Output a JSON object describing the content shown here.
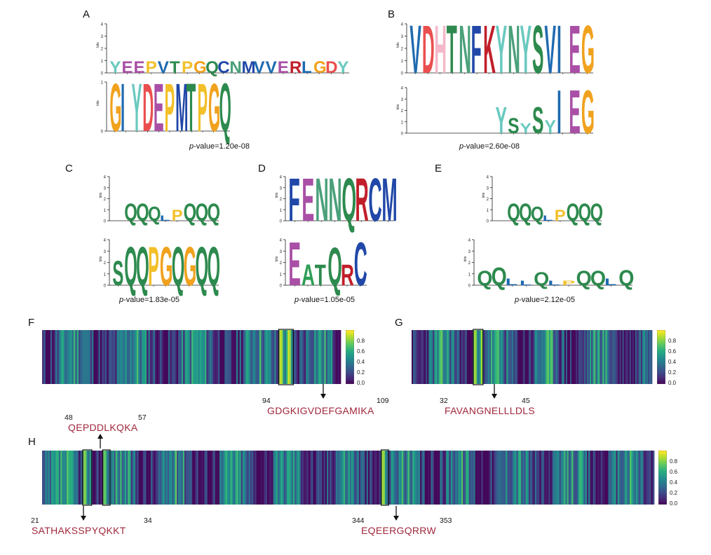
{
  "palette": {
    "A": "#2e9e57",
    "G": "#f0a21e",
    "C": "#2148a8",
    "D": "#ea4f4f",
    "E": "#a94fa6",
    "F": "#2148a8",
    "H": "#f4b8c8",
    "I": "#1e6ab0",
    "K": "#c11f2a",
    "L": "#1e6ab0",
    "M": "#2148a8",
    "N": "#4aa07a",
    "P": "#f3c02a",
    "Q": "#2d8a4e",
    "R": "#c11f2a",
    "S": "#2d8a4e",
    "T": "#2d8a4e",
    "V": "#1e6ab0",
    "W": "#2148a8",
    "Y": "#69c9bf"
  },
  "panels": {
    "A": {
      "letter": "A",
      "pvalue_label": "p",
      "pvalue_text": "-value=1.20e-08"
    },
    "B": {
      "letter": "B",
      "pvalue_label": "p",
      "pvalue_text": "-value=2.60e-08"
    },
    "C": {
      "letter": "C",
      "pvalue_label": "p",
      "pvalue_text": "-value=1.83e-05"
    },
    "D": {
      "letter": "D",
      "pvalue_label": "p",
      "pvalue_text": "-value=1.05e-05"
    },
    "E": {
      "letter": "E",
      "pvalue_label": "p",
      "pvalue_text": "-value=2.12e-05"
    },
    "F": {
      "letter": "F"
    },
    "G": {
      "letter": "G"
    },
    "H": {
      "letter": "H"
    }
  },
  "logos": {
    "A_top": {
      "ymax": 4,
      "columns": [
        "Y",
        "E",
        "E",
        "P",
        "V",
        "T",
        "P",
        "G",
        "Q",
        "C",
        "N",
        "M",
        "V",
        "V",
        "E",
        "R",
        "L",
        "G",
        "D",
        "Y"
      ],
      "heights": [
        1,
        1,
        1,
        1,
        1,
        1,
        1,
        1,
        1,
        1,
        1,
        1,
        1,
        1,
        1,
        1,
        1,
        1,
        1,
        1
      ]
    },
    "A_bottom": {
      "ymax": 1,
      "columns": [
        "G",
        "I",
        "Y",
        "D",
        "E",
        "P",
        "M",
        "T",
        "P",
        "G",
        "Q"
      ],
      "heights": [
        1,
        1,
        1,
        1,
        1,
        1,
        1,
        1,
        1,
        1,
        1
      ]
    },
    "B_top": {
      "ymax": 4,
      "columns": [
        "V",
        "D",
        "H",
        "T",
        "N",
        "F",
        "K",
        "Y",
        "N",
        "Y",
        "S",
        "V",
        "I",
        "E",
        "G"
      ],
      "heights": [
        4,
        4,
        4,
        4,
        4,
        4,
        4,
        4,
        4,
        4,
        4,
        4,
        4,
        4,
        4
      ]
    },
    "B_bottom": {
      "ymax": 4,
      "columns": [
        "Y",
        "S",
        "Y",
        "S",
        "Y",
        "I",
        "E",
        "G"
      ],
      "heights": [
        2.4,
        1.4,
        0.9,
        2.4,
        1.2,
        3.9,
        3.9,
        3.9
      ]
    },
    "C_top": {
      "ymax": 4,
      "columns": [
        "Q",
        "Q",
        "Q",
        "L",
        "P",
        "Q",
        "Q",
        "Q"
      ],
      "heights": [
        1.6,
        1.6,
        1.3,
        0.5,
        1,
        1.6,
        1.6,
        1.6
      ]
    },
    "C_bottom": {
      "ymax": 4,
      "columns": [
        "S",
        "Q",
        "Q",
        "P",
        "G",
        "Q",
        "G",
        "Q",
        "Q"
      ],
      "heights": [
        2.2,
        3.5,
        3.5,
        3.5,
        3.5,
        3.5,
        3.5,
        3.5,
        3.5
      ]
    },
    "D_top": {
      "ymax": 4,
      "columns": [
        "F",
        "E",
        "N",
        "N",
        "Q",
        "R",
        "C",
        "M"
      ],
      "heights": [
        4,
        4,
        4,
        4,
        4,
        4,
        4,
        4
      ]
    },
    "D_bottom": {
      "ymax": 4,
      "columns": [
        "E",
        "A",
        "T",
        "Q",
        "R",
        "C"
      ],
      "heights": [
        3.9,
        1.9,
        1.9,
        3.4,
        1.9,
        3.9
      ]
    },
    "E_top": {
      "ymax": 4,
      "columns": [
        "Q",
        "Q",
        "Q",
        "L",
        "P",
        "Q",
        "Q",
        "Q"
      ],
      "heights": [
        1.6,
        1.6,
        1.3,
        0.5,
        1,
        1.6,
        1.6,
        1.6
      ]
    },
    "E_bottom": {
      "ymax": 4,
      "columns": [
        "Q",
        "Q",
        "L",
        "L",
        "Q",
        "L",
        "P",
        "Q",
        "Q",
        "L",
        "Q"
      ],
      "heights": [
        1.3,
        1.6,
        0.6,
        0.4,
        1.2,
        0.4,
        0.4,
        1.3,
        1.3,
        0.6,
        1.4
      ]
    }
  },
  "heatmaps": {
    "F": {
      "range": [
        0,
        0.9
      ],
      "ticks": [
        "0.8",
        "0.6",
        "0.4",
        "0.2",
        "0.0"
      ],
      "n": 180,
      "seed": 11,
      "highlights": [
        [
          143,
          8,
          0.95
        ]
      ],
      "start_num": "94",
      "end_num": "109",
      "sequence": "GDGKIGVDEFGAMIKA"
    },
    "G": {
      "range": [
        0,
        0.9
      ],
      "ticks": [
        "0.8",
        "0.6",
        "0.4",
        "0.2",
        "0.0"
      ],
      "n": 170,
      "seed": 23,
      "highlights": [
        [
          44,
          6,
          0.9
        ]
      ],
      "start_num": "32",
      "end_num": "45",
      "sequence": "FAVANGNELLLDLS"
    },
    "H": {
      "range": [
        0,
        0.9
      ],
      "ticks": [
        "0.8",
        "0.6",
        "0.4",
        "0.2",
        "0.0"
      ],
      "n": 400,
      "seed": 37,
      "highlights": [
        [
          27,
          5,
          0.85
        ],
        [
          40,
          4,
          0.8
        ],
        [
          222,
          4,
          0.9
        ]
      ],
      "upper_start_num": "48",
      "upper_end_num": "57",
      "upper_sequence": "QEPDDLKQKA",
      "lower1_start_num": "21",
      "lower1_end_num": "34",
      "lower1_sequence": "SATHAKSSPYQKKT",
      "lower2_start_num": "344",
      "lower2_end_num": "353",
      "lower2_sequence": "EQEERGQRRW"
    }
  }
}
